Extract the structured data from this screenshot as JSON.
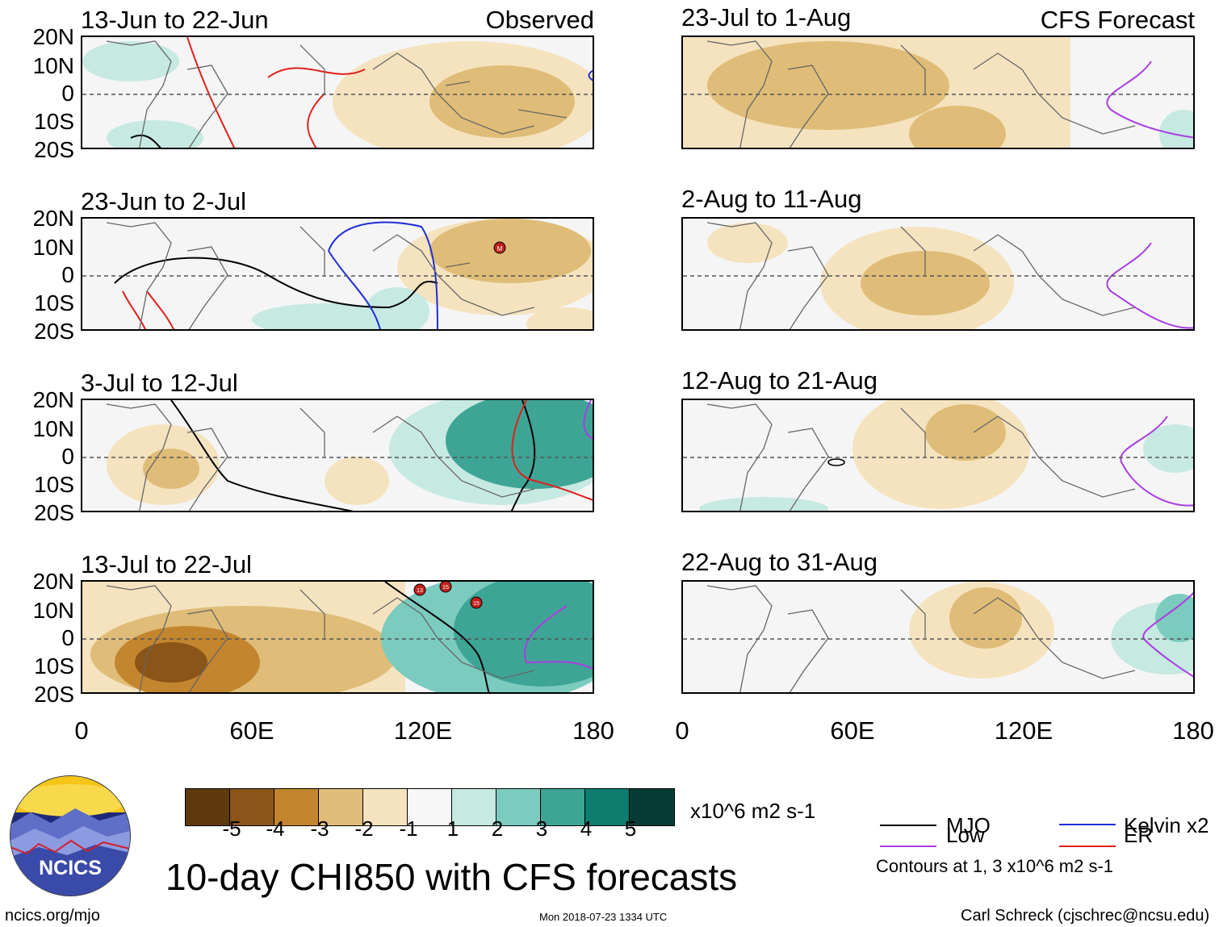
{
  "observed_label": "Observed",
  "forecast_label": "CFS Forecast",
  "lat_labels": [
    "20N",
    "10N",
    "0",
    "10S",
    "20S"
  ],
  "lon_labels": [
    "0",
    "60E",
    "120E",
    "180"
  ],
  "panels_observed": [
    {
      "title": "13-Jun to 22-Jun"
    },
    {
      "title": "23-Jun to 2-Jul"
    },
    {
      "title": "3-Jul to 12-Jul"
    },
    {
      "title": "13-Jul to 22-Jul"
    }
  ],
  "panels_forecast": [
    {
      "title": "23-Jul to 1-Aug"
    },
    {
      "title": "2-Aug to 11-Aug"
    },
    {
      "title": "12-Aug to 21-Aug"
    },
    {
      "title": "22-Aug to 31-Aug"
    }
  ],
  "colorbar": {
    "labels": [
      "-5",
      "-4",
      "-3",
      "-2",
      "-1",
      "1",
      "2",
      "3",
      "4",
      "5"
    ],
    "colors": [
      "#5e3a0d",
      "#8b5418",
      "#c3852e",
      "#dfbd78",
      "#f5e3bf",
      "#f7f7f7",
      "#c6e9e2",
      "#7ccbbf",
      "#3ea596",
      "#0e7c6f",
      "#053d35"
    ],
    "units": "x10^6 m2 s-1"
  },
  "legend": {
    "mjo": "MJO",
    "kelvin": "Kelvin x2",
    "low": "Low",
    "er": "ER",
    "contours_note": "Contours at 1, 3 x10^6 m2 s-1",
    "colors": {
      "mjo": "#000000",
      "kelvin": "#1f2ed6",
      "low": "#a93ee0",
      "er": "#e0201b"
    }
  },
  "main_title": "10-day CHI850 with CFS forecasts",
  "footer": {
    "website": "ncics.org/mjo",
    "timestamp": "Mon 2018-07-23 1334 UTC",
    "author": "Carl Schreck (cjschrec@ncsu.edu)"
  },
  "logo_text": "NCICS",
  "storm_markers": [
    "M",
    "13",
    "15",
    "15"
  ]
}
